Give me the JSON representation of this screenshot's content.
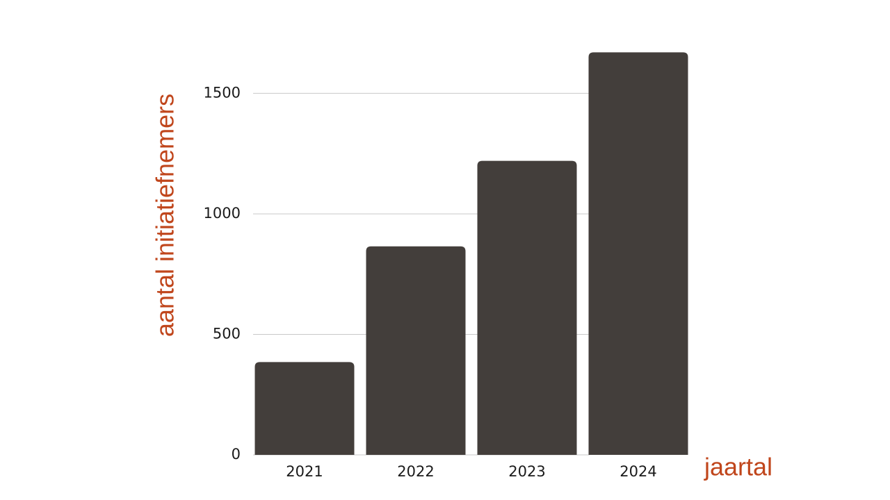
{
  "chart_data": {
    "type": "bar",
    "x_label": "jaartal",
    "y_label": "aantal initiatiefnemers",
    "categories": [
      "2021",
      "2022",
      "2023",
      "2024"
    ],
    "values": [
      385,
      865,
      1220,
      1670
    ],
    "color": "#433e3b",
    "ylim": [
      0,
      1700
    ],
    "yticks": [
      0,
      500,
      1000,
      1500
    ],
    "grid": true
  }
}
